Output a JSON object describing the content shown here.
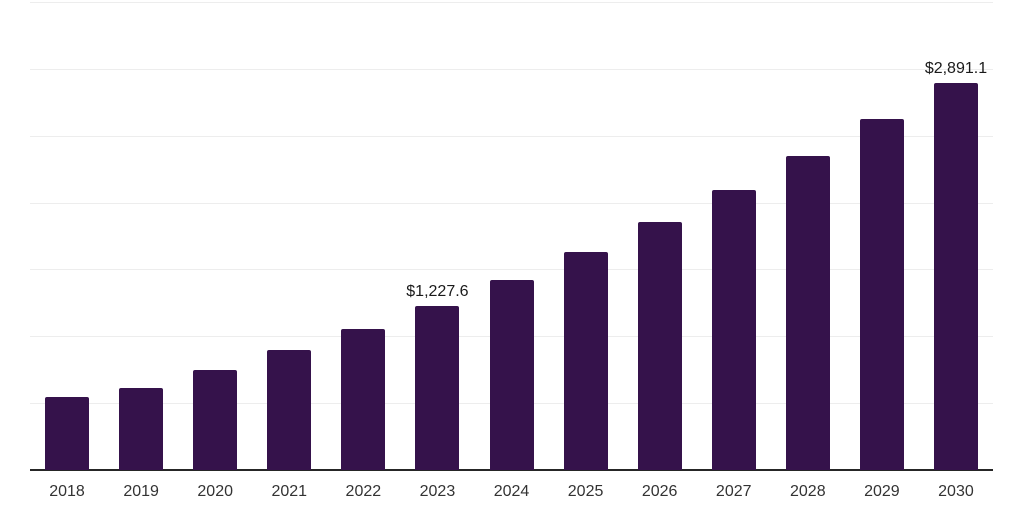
{
  "chart_data": {
    "type": "bar",
    "title": "",
    "xlabel": "",
    "ylabel": "",
    "categories": [
      "2018",
      "2019",
      "2020",
      "2021",
      "2022",
      "2023",
      "2024",
      "2025",
      "2026",
      "2027",
      "2028",
      "2029",
      "2030"
    ],
    "values": [
      544,
      613,
      748,
      898,
      1055,
      1227.6,
      1420,
      1631,
      1853,
      2097,
      2351,
      2623,
      2891.1
    ],
    "value_labels": [
      "",
      "",
      "",
      "",
      "",
      "$1,227.6",
      "",
      "",
      "",
      "",
      "",
      "",
      "$2,891.1"
    ],
    "ylim": [
      0,
      3500
    ],
    "ytick_step": 500,
    "grid": "horizontal",
    "legend": "none",
    "colors": {
      "bar": "#35124B",
      "axis": "#262626",
      "gridline": "#ededed",
      "tick_label": "#333333",
      "value_label": "#1a1a1a",
      "background": "#ffffff"
    }
  }
}
